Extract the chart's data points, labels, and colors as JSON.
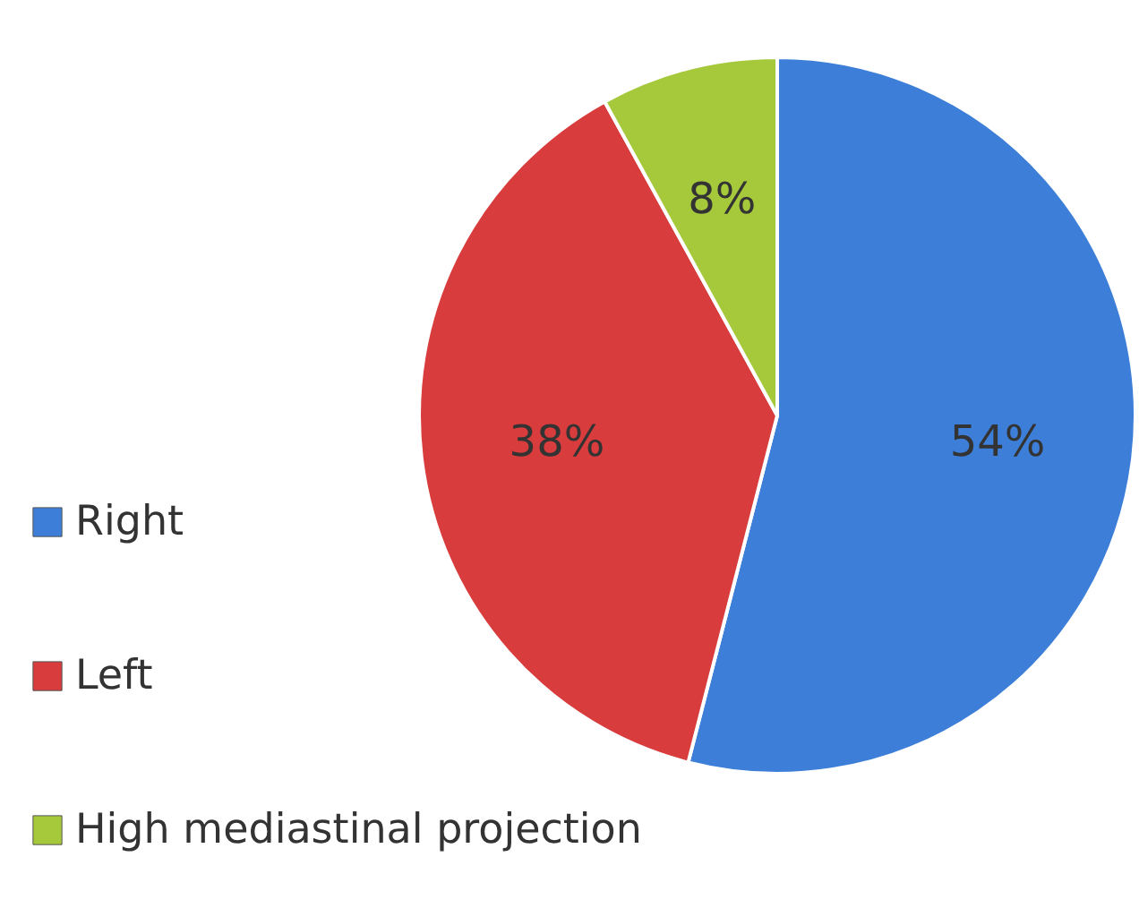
{
  "chart_data": {
    "type": "pie",
    "categories": [
      "Right",
      "Left",
      "High mediastinal projection"
    ],
    "values": [
      54,
      38,
      8
    ],
    "colors": [
      "#3d7fd8",
      "#d83c3c",
      "#a5c93a"
    ],
    "value_labels": [
      "54%",
      "38%",
      "8%"
    ],
    "legend": "left"
  }
}
